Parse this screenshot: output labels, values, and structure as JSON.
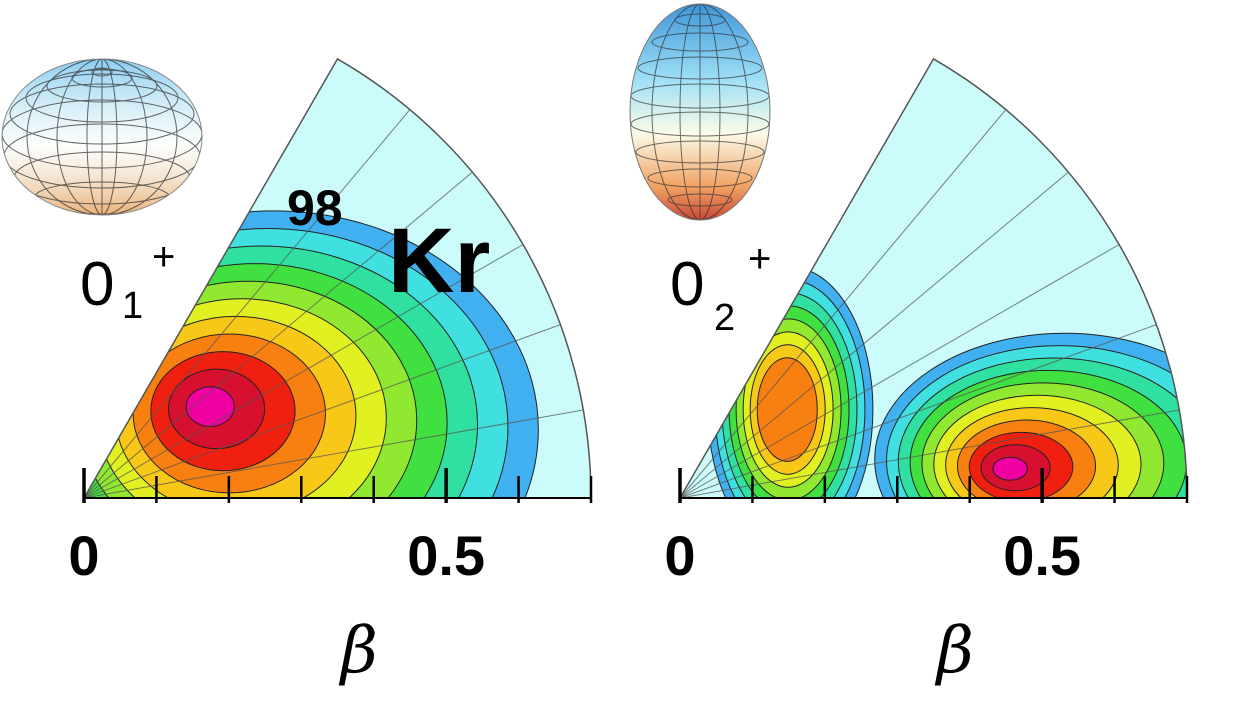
{
  "chart_data": [
    {
      "type": "heatmap",
      "title": "",
      "xlabel": "β",
      "ylabel": "",
      "x_ticks": [
        "0",
        "0.5"
      ],
      "xlim": [
        0,
        0.7
      ],
      "gamma_range_deg": [
        0,
        60
      ],
      "state": {
        "base": "0",
        "sub": "1",
        "sup": "+"
      },
      "nucleus": {
        "mass": "98",
        "symbol": "Kr"
      },
      "shape_icon": "oblate-spheroid-icon",
      "peaks": [
        {
          "beta": 0.21,
          "gamma_deg": 38,
          "max": 1.0
        }
      ]
    },
    {
      "type": "heatmap",
      "title": "",
      "xlabel": "β",
      "ylabel": "",
      "x_ticks": [
        "0",
        "0.5"
      ],
      "xlim": [
        0,
        0.7
      ],
      "gamma_range_deg": [
        0,
        60
      ],
      "state": {
        "base": "0",
        "sub": "2",
        "sup": "+"
      },
      "shape_icon": "prolate-spheroid-icon",
      "peaks": [
        {
          "beta": 0.19,
          "gamma_deg": 40,
          "max": 0.72
        },
        {
          "beta": 0.45,
          "gamma_deg": 5,
          "max": 1.0
        }
      ]
    }
  ],
  "colors": {
    "background_fan": "#ccfbfb",
    "contour_scale": [
      "#40b0f0",
      "#40e0e0",
      "#30e0a0",
      "#40e040",
      "#90e830",
      "#e0f020",
      "#f8c818",
      "#f88010",
      "#f02010",
      "#d81030",
      "#f000a0"
    ]
  }
}
